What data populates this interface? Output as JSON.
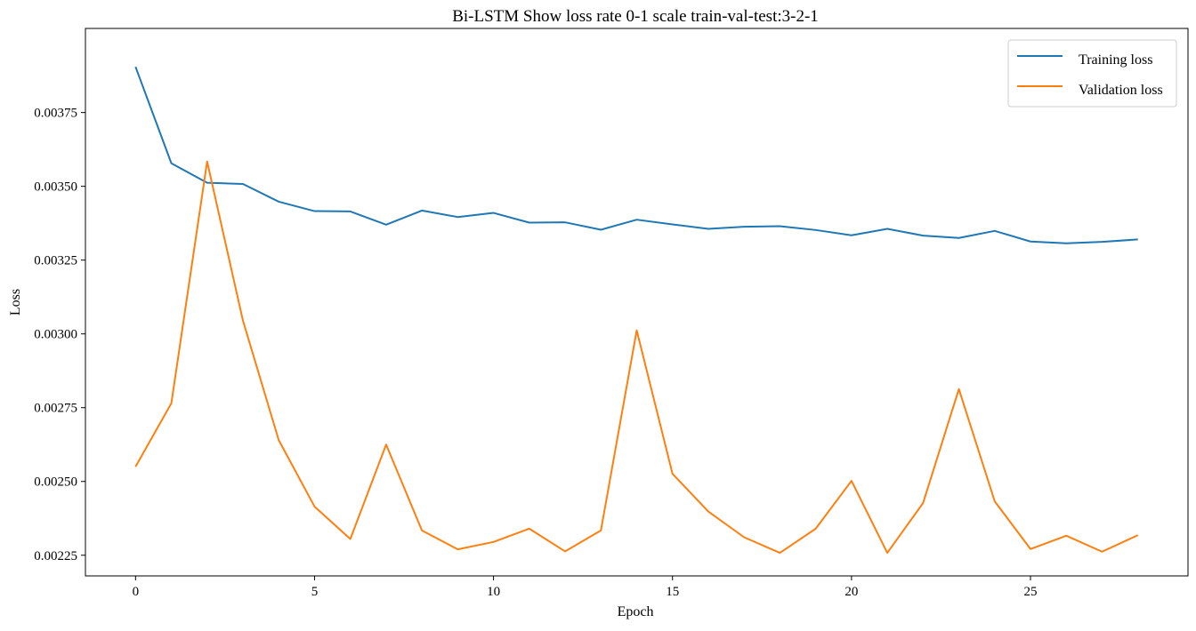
{
  "chart_data": {
    "type": "line",
    "title": "Bi-LSTM Show loss rate 0-1 scale train-val-test:3-2-1",
    "xlabel": "Epoch",
    "ylabel": "Loss",
    "xlim": [
      -1.4,
      29.4
    ],
    "ylim": [
      0.00218,
      0.004035
    ],
    "xticks": [
      0,
      5,
      10,
      15,
      20,
      25
    ],
    "yticks": [
      0.00225,
      0.0025,
      0.00275,
      0.003,
      0.00325,
      0.0035,
      0.00375
    ],
    "ytick_labels": [
      "0.00225",
      "0.00250",
      "0.00275",
      "0.00300",
      "0.00325",
      "0.00350",
      "0.00375"
    ],
    "grid": false,
    "legend_position": "top-right",
    "x": [
      0,
      1,
      2,
      3,
      4,
      5,
      6,
      7,
      8,
      9,
      10,
      11,
      12,
      13,
      14,
      15,
      16,
      17,
      18,
      19,
      20,
      21,
      22,
      23,
      24,
      25,
      26,
      27,
      28
    ],
    "series": [
      {
        "name": "Training loss",
        "color": "#1f77b4",
        "values": [
          0.003905,
          0.003578,
          0.003512,
          0.003508,
          0.003448,
          0.003416,
          0.003415,
          0.00337,
          0.003418,
          0.003396,
          0.00341,
          0.003377,
          0.003378,
          0.003353,
          0.003387,
          0.003371,
          0.003356,
          0.003363,
          0.003365,
          0.003352,
          0.003334,
          0.003356,
          0.003333,
          0.003325,
          0.003349,
          0.003313,
          0.003307,
          0.003312,
          0.00332
        ]
      },
      {
        "name": "Validation loss",
        "color": "#ff7f0e",
        "values": [
          0.00255,
          0.002765,
          0.003584,
          0.003045,
          0.00264,
          0.002415,
          0.002305,
          0.002625,
          0.002334,
          0.00227,
          0.002295,
          0.00234,
          0.002263,
          0.002334,
          0.003012,
          0.002526,
          0.002398,
          0.002311,
          0.002258,
          0.00234,
          0.002502,
          0.002258,
          0.002427,
          0.002813,
          0.002433,
          0.002271,
          0.002316,
          0.002262,
          0.002318
        ]
      }
    ]
  }
}
